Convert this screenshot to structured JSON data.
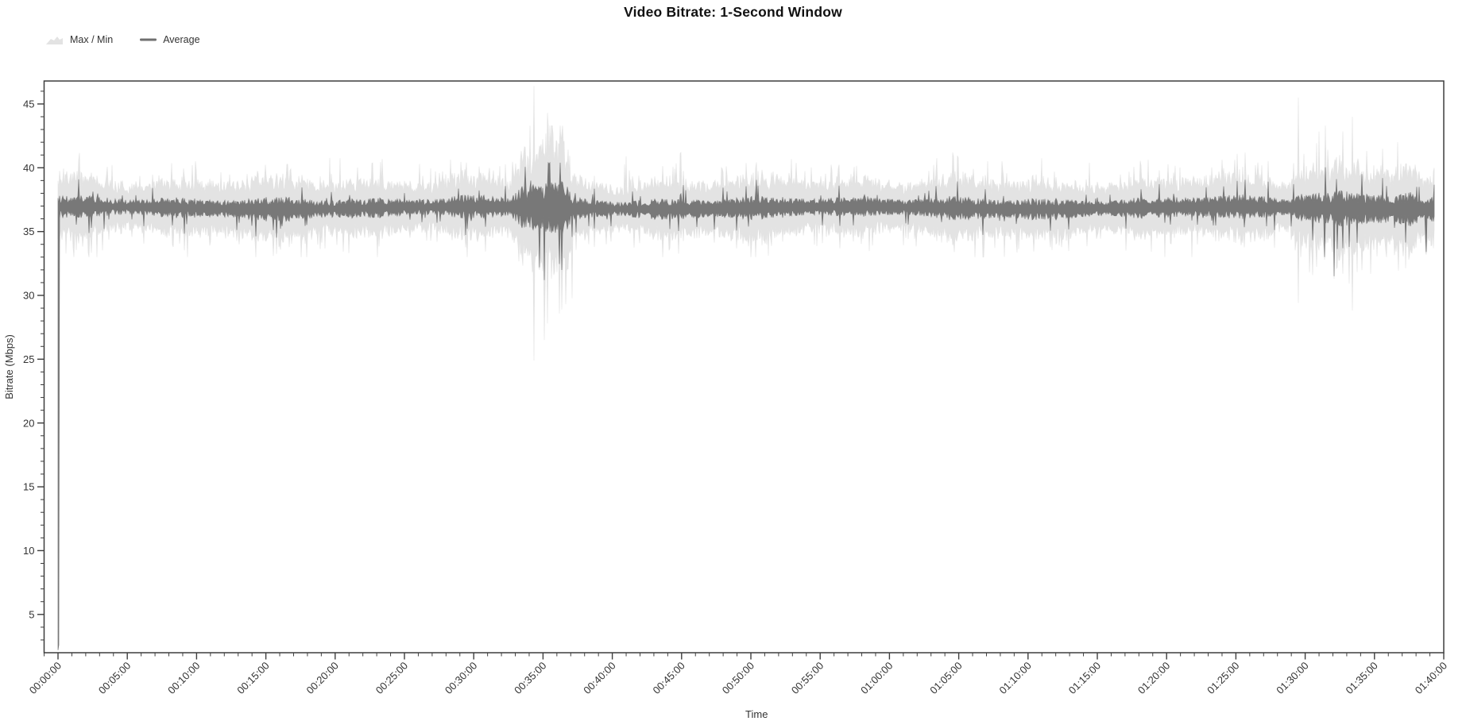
{
  "title": "Video Bitrate: 1-Second Window",
  "legend": {
    "items": [
      {
        "label": "Max / Min",
        "swatch": "area",
        "color": "#e3e3e3"
      },
      {
        "label": "Average",
        "swatch": "line",
        "color": "#6f6f6f"
      }
    ]
  },
  "axes": {
    "x": {
      "label": "Time",
      "major_tick_labels": [
        "00:00:00",
        "00:05:00",
        "00:10:00",
        "00:15:00",
        "00:20:00",
        "00:25:00",
        "00:30:00",
        "00:35:00",
        "00:40:00",
        "00:45:00",
        "00:50:00",
        "00:55:00",
        "01:00:00",
        "01:05:00",
        "01:10:00",
        "01:15:00",
        "01:20:00",
        "01:25:00",
        "01:30:00",
        "01:35:00",
        "01:40:00"
      ],
      "major_step_minutes": 5,
      "minor_step_minutes": 1,
      "range_minutes": [
        -1,
        100
      ]
    },
    "y": {
      "label": "Bitrate (Mbps)",
      "major_ticks": [
        5,
        10,
        15,
        20,
        25,
        30,
        35,
        40,
        45
      ],
      "minor_step": 1,
      "range": [
        2.0,
        46.8
      ]
    }
  },
  "chart_data": {
    "type": "line",
    "title": "Video Bitrate: 1-Second Window",
    "xlabel": "Time",
    "ylabel": "Bitrate (Mbps)",
    "x_unit": "minutes",
    "data_time_range_minutes": [
      0,
      99.3
    ],
    "series": [
      {
        "name": "Max / Min",
        "kind": "band",
        "color": "#e3e3e3",
        "typical_max": 38.5,
        "typical_min": 35.2
      },
      {
        "name": "Average",
        "kind": "line",
        "color": "#787878",
        "baseline": 36.85,
        "typical_jitter": 0.7
      }
    ],
    "start_point": {
      "time_minutes": 0,
      "average": 2.2
    },
    "events": [
      {
        "time_minutes": 3.3,
        "average_low": 35.2
      },
      {
        "time_minutes": 34.1,
        "average_high": 39.0
      },
      {
        "time_minutes": 34.35,
        "max": 46.4,
        "min": 24.9
      },
      {
        "time_minutes": 34.75,
        "average_low": 32.2
      },
      {
        "time_minutes": 35.1,
        "average_low": 31.2,
        "min": 26.5
      },
      {
        "time_minutes": 35.3,
        "max": 44.3,
        "min": 27.8
      },
      {
        "time_minutes": 35.45,
        "average_high": 40.3
      },
      {
        "time_minutes": 41.0,
        "max": 40.9
      },
      {
        "time_minutes": 89.5,
        "max": 45.5,
        "min": 29.4
      },
      {
        "time_minutes": 91.4,
        "average_low": 33.0
      },
      {
        "time_minutes": 92.1,
        "average_low": 31.5
      },
      {
        "time_minutes": 93.4,
        "max": 44.0,
        "min": 28.8
      },
      {
        "time_minutes": 94.1,
        "average_high": 39.5
      },
      {
        "time_minutes": 94.7,
        "min": 31.7
      },
      {
        "time_minutes": 95.6,
        "average_high": 39.2,
        "max": 41.5
      },
      {
        "time_minutes": 96.7,
        "max": 42.0
      },
      {
        "time_minutes": 98.75,
        "average_low": 33.4
      }
    ],
    "high_variance_windows": [
      {
        "start_minutes": 33.2,
        "end_minutes": 36.8,
        "amplitude_x": 2.3
      },
      {
        "start_minutes": 89.3,
        "end_minutes": 97.8,
        "amplitude_x": 1.75
      }
    ],
    "minor_max_spike_times_minutes": [
      9.9,
      16.5,
      19.6,
      23.3,
      26.1,
      29.5,
      31.9,
      40.9,
      44.6,
      48.2,
      52.9,
      57.6,
      63.2,
      68.1,
      74.4,
      80.1,
      84.0,
      86.4
    ]
  },
  "colors": {
    "background": "#ffffff",
    "band": "#e3e3e3",
    "average": "#787878",
    "axis": "#3d3d3d",
    "tick_text": "#333333",
    "title_text": "#111111"
  }
}
